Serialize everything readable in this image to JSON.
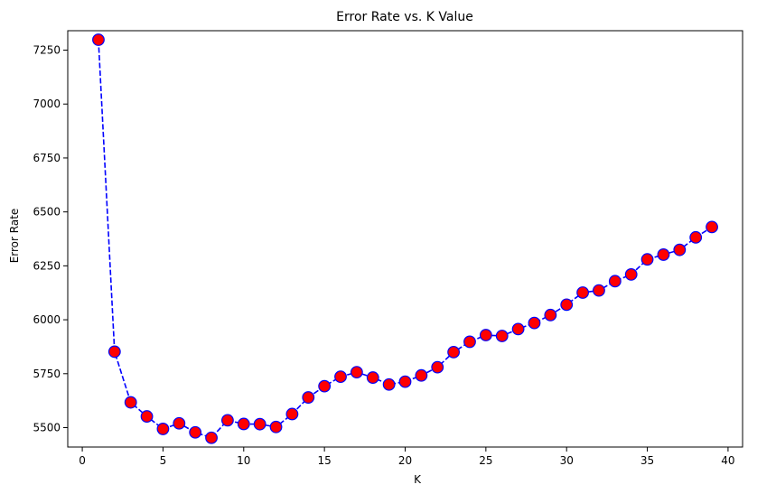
{
  "chart_data": {
    "type": "line",
    "title": "Error Rate vs. K Value",
    "xlabel": "K",
    "ylabel": "Error Rate",
    "xlim": [
      -0.9,
      40.9
    ],
    "ylim": [
      5410,
      7340
    ],
    "xticks": [
      0,
      5,
      10,
      15,
      20,
      25,
      30,
      35,
      40
    ],
    "yticks": [
      5500,
      5750,
      6000,
      6250,
      6500,
      6750,
      7000,
      7250
    ],
    "grid": false,
    "line_color": "#0000ff",
    "line_style": "dashed",
    "marker_face_color": "#ff0000",
    "marker_edge_color": "#0000ff",
    "series": [
      {
        "x": [
          1,
          2,
          3,
          4,
          5,
          6,
          7,
          8,
          9,
          10,
          11,
          12,
          13,
          14,
          15,
          16,
          17,
          18,
          19,
          20,
          21,
          22,
          23,
          24,
          25,
          26,
          27,
          28,
          29,
          30,
          31,
          32,
          33,
          34,
          35,
          36,
          37,
          38,
          39
        ],
        "values": [
          7298,
          5852,
          5617,
          5552,
          5494,
          5520,
          5478,
          5453,
          5534,
          5517,
          5516,
          5503,
          5563,
          5640,
          5692,
          5736,
          5757,
          5732,
          5700,
          5713,
          5742,
          5780,
          5850,
          5898,
          5929,
          5925,
          5957,
          5985,
          6022,
          6070,
          6126,
          6136,
          6179,
          6210,
          6280,
          6302,
          6324,
          6382,
          6430
        ]
      }
    ]
  }
}
